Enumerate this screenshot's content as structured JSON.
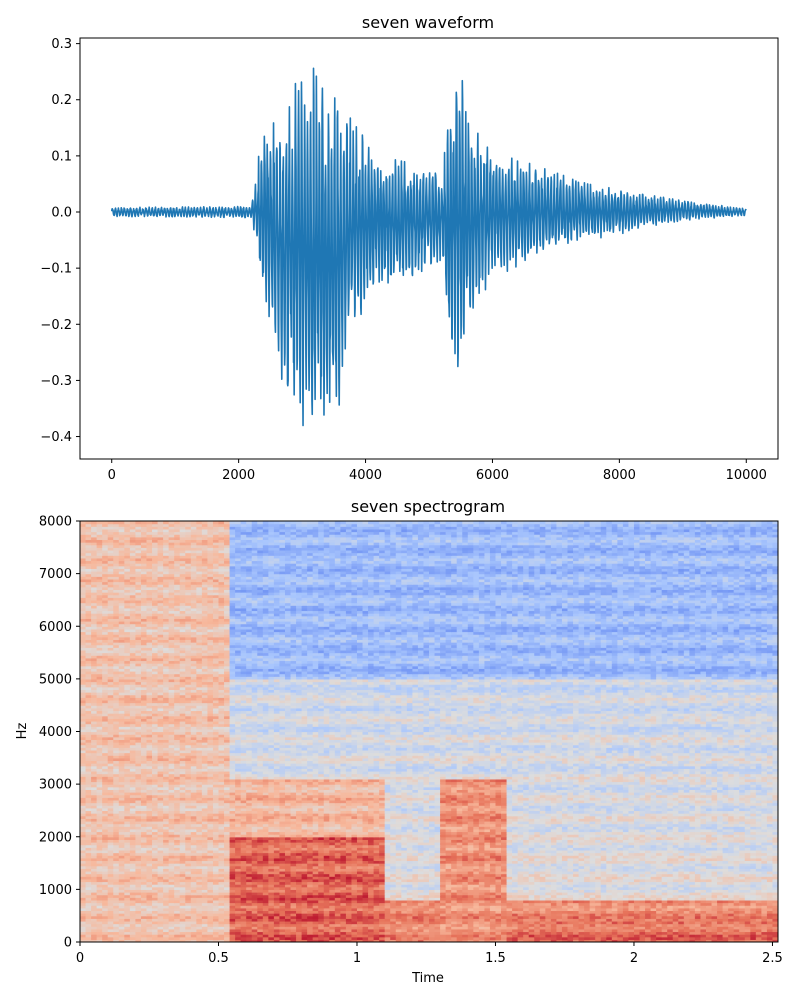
{
  "chart_data": [
    {
      "type": "line",
      "title": "seven waveform",
      "xlabel": "",
      "ylabel": "",
      "xlim": [
        -500,
        10500
      ],
      "ylim": [
        -0.44,
        0.31
      ],
      "xticks": [
        0,
        2000,
        4000,
        6000,
        8000,
        10000
      ],
      "yticks": [
        -0.4,
        -0.3,
        -0.2,
        -0.1,
        0.0,
        0.1,
        0.2,
        0.3
      ],
      "xtick_labels": [
        "0",
        "2000",
        "4000",
        "6000",
        "8000",
        "10000"
      ],
      "ytick_labels": [
        "−0.4",
        "−0.3",
        "−0.2",
        "−0.1",
        "0.0",
        "0.1",
        "0.2",
        "0.3"
      ],
      "color": "#1f77b4",
      "n_samples": 10000,
      "envelope": {
        "x": [
          0,
          2200,
          2300,
          2450,
          2650,
          2900,
          3100,
          3200,
          3400,
          3600,
          3800,
          4200,
          4600,
          5000,
          5200,
          5300,
          5450,
          5700,
          6000,
          6500,
          7000,
          7500,
          8000,
          8500,
          9000,
          10000
        ],
        "upper": [
          0.008,
          0.01,
          0.09,
          0.18,
          0.17,
          0.23,
          0.24,
          0.26,
          0.22,
          0.2,
          0.16,
          0.1,
          0.09,
          0.08,
          0.07,
          0.15,
          0.27,
          0.15,
          0.11,
          0.09,
          0.07,
          0.05,
          0.04,
          0.03,
          0.02,
          0.006
        ],
        "lower": [
          -0.008,
          -0.01,
          -0.07,
          -0.2,
          -0.3,
          -0.34,
          -0.41,
          -0.41,
          -0.39,
          -0.34,
          -0.21,
          -0.13,
          -0.12,
          -0.1,
          -0.09,
          -0.2,
          -0.29,
          -0.17,
          -0.12,
          -0.09,
          -0.07,
          -0.05,
          -0.04,
          -0.025,
          -0.015,
          -0.006
        ]
      }
    },
    {
      "type": "heatmap",
      "title": "seven spectrogram",
      "xlabel": "Time",
      "ylabel": "Hz",
      "xlim": [
        0,
        2.52
      ],
      "ylim": [
        0,
        8000
      ],
      "xticks": [
        0,
        0.5,
        1,
        1.5,
        2,
        2.5
      ],
      "yticks": [
        0,
        1000,
        2000,
        3000,
        4000,
        5000,
        6000,
        7000,
        8000
      ],
      "xtick_labels": [
        "0",
        "0.5",
        "1",
        "1.5",
        "2",
        "2.5"
      ],
      "ytick_labels": [
        "0",
        "1000",
        "2000",
        "3000",
        "4000",
        "5000",
        "6000",
        "7000",
        "8000"
      ],
      "colormap": "coolwarm",
      "colormap_stops": [
        "#3b4cc0",
        "#6f92f3",
        "#aac7fd",
        "#dddddd",
        "#f7b89c",
        "#e7745b",
        "#b40426"
      ],
      "regions": [
        {
          "t": [
            0,
            0.55
          ],
          "f": [
            0,
            8000
          ],
          "level": 0.62
        },
        {
          "t": [
            0.55,
            2.52
          ],
          "f": [
            0,
            800
          ],
          "level": 0.78
        },
        {
          "t": [
            0.55,
            1.1
          ],
          "f": [
            0,
            2000
          ],
          "level": 0.85
        },
        {
          "t": [
            0.55,
            1.1
          ],
          "f": [
            2000,
            3100
          ],
          "level": 0.66
        },
        {
          "t": [
            1.3,
            1.55
          ],
          "f": [
            0,
            3100
          ],
          "level": 0.76
        },
        {
          "t": [
            1.55,
            2.52
          ],
          "f": [
            0,
            400
          ],
          "level": 0.83
        },
        {
          "t": [
            0.55,
            2.52
          ],
          "f": [
            5000,
            8000
          ],
          "level": 0.3
        }
      ]
    }
  ]
}
